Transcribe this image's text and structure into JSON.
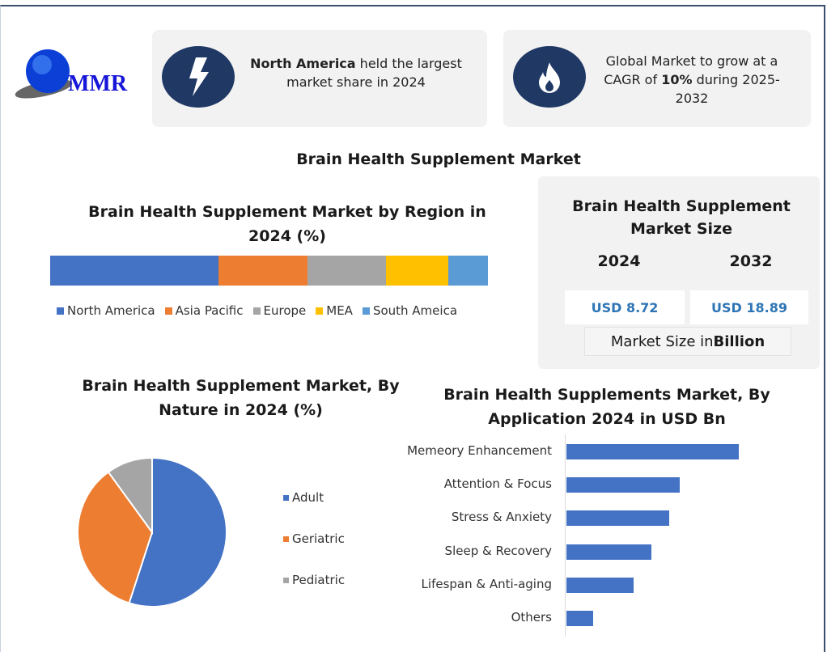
{
  "logo": {
    "text": "MMR"
  },
  "highlights": [
    {
      "icon": "lightning-icon",
      "bold": "North America",
      "text": " held the largest market share in 2024"
    },
    {
      "icon": "flame-icon",
      "pre": "Global Market to grow at a CAGR of ",
      "bold": "10%",
      "post": " during 2025-2032"
    }
  ],
  "main_title": "Brain Health Supplement Market",
  "market_size": {
    "title": "Brain Health Supplement Market Size",
    "years": [
      "2024",
      "2032"
    ],
    "values": [
      "USD 8.72",
      "USD 18.89"
    ],
    "unit_pre": "Market Size in ",
    "unit_bold": "Billion"
  },
  "colors": {
    "accent": "#1f3864",
    "value": "#2e75b6",
    "bar": "#4472c4"
  },
  "chart_data": [
    {
      "type": "bar",
      "stacked": true,
      "orientation": "horizontal",
      "title": "Brain Health Supplement Market by Region in 2024 (%)",
      "categories": [
        "North America",
        "Asia Pacific",
        "Europe",
        "MEA",
        "South Ameica"
      ],
      "values": [
        38.5,
        20.3,
        17.9,
        14.2,
        9.1
      ],
      "colors": [
        "#4472c4",
        "#ed7d31",
        "#a5a5a5",
        "#ffc000",
        "#5b9bd5"
      ],
      "legend": "bottom"
    },
    {
      "type": "pie",
      "title": "Brain Health Supplement Market, By Nature in 2024 (%)",
      "categories": [
        "Adult",
        "Geriatric",
        "Pediatric"
      ],
      "values": [
        55,
        35,
        10
      ],
      "colors": [
        "#4472c4",
        "#ed7d31",
        "#a5a5a5"
      ],
      "legend": "right"
    },
    {
      "type": "bar",
      "orientation": "horizontal",
      "title": "Brain Health Supplements Market, By Application 2024 in USD Bn",
      "categories": [
        "Memeory Enhancement",
        "Attention & Focus",
        "Stress & Anxiety",
        "Sleep & Recovery",
        "Lifespan & Anti-aging",
        "Others"
      ],
      "values": [
        2.65,
        1.74,
        1.58,
        1.31,
        1.03,
        0.41
      ],
      "color": "#4472c4",
      "grid": false
    }
  ]
}
